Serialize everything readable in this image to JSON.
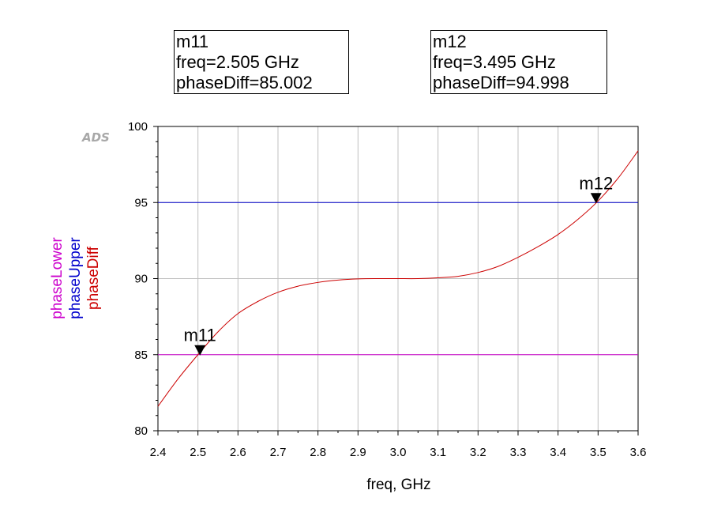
{
  "brand": {
    "logo_text": "ADS"
  },
  "markers": [
    {
      "name": "m11",
      "freq_text": "freq=2.505 GHz",
      "value_text": "phaseDiff=85.002",
      "x": 2.505,
      "y": 85.002
    },
    {
      "name": "m12",
      "freq_text": "freq=3.495 GHz",
      "value_text": "phaseDiff=94.998",
      "x": 3.495,
      "y": 94.998
    }
  ],
  "chart_data": {
    "type": "line",
    "xlabel": "freq, GHz",
    "xlim": [
      2.4,
      3.6
    ],
    "ylim": [
      80,
      100
    ],
    "xticks": [
      "2.4",
      "2.5",
      "2.6",
      "2.7",
      "2.8",
      "2.9",
      "3.0",
      "3.1",
      "3.2",
      "3.3",
      "3.4",
      "3.5",
      "3.6"
    ],
    "yticks": [
      "80",
      "85",
      "90",
      "95",
      "100"
    ],
    "grid": true,
    "series": [
      {
        "name": "phaseLower",
        "color": "#cc00cc",
        "x": [
          2.4,
          3.6
        ],
        "y": [
          85,
          85
        ]
      },
      {
        "name": "phaseUpper",
        "color": "#0000cc",
        "x": [
          2.4,
          3.6
        ],
        "y": [
          95,
          95
        ]
      },
      {
        "name": "phaseDiff",
        "color": "#cc0000",
        "x": [
          2.4,
          2.45,
          2.5,
          2.55,
          2.6,
          2.65,
          2.7,
          2.75,
          2.8,
          2.85,
          2.9,
          2.95,
          3.0,
          3.05,
          3.1,
          3.15,
          3.2,
          3.25,
          3.3,
          3.35,
          3.4,
          3.45,
          3.5,
          3.55,
          3.6
        ],
        "y": [
          81.6,
          83.4,
          85.0,
          86.5,
          87.7,
          88.5,
          89.1,
          89.5,
          89.75,
          89.9,
          89.98,
          90.0,
          90.0,
          90.0,
          90.05,
          90.15,
          90.4,
          90.8,
          91.4,
          92.1,
          92.9,
          93.9,
          95.1,
          96.6,
          98.4
        ]
      }
    ]
  }
}
